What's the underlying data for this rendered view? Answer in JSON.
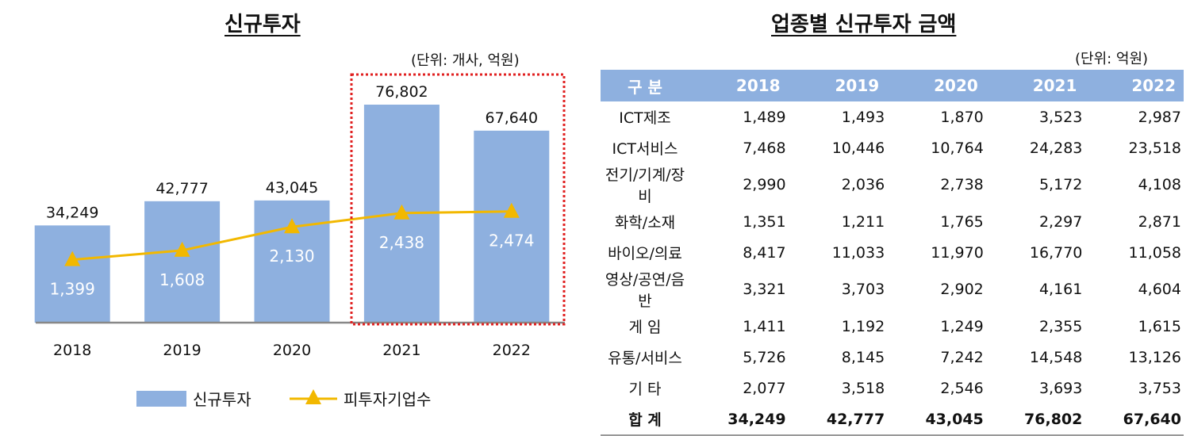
{
  "chart_data": {
    "type": "bar+line",
    "title": "신규투자",
    "unit_note": "(단위: 개사, 억원)",
    "categories": [
      "2018",
      "2019",
      "2020",
      "2021",
      "2022"
    ],
    "series": [
      {
        "name": "신규투자",
        "type": "bar",
        "color": "#8eb0df",
        "values": [
          34249,
          42777,
          43045,
          76802,
          67640
        ],
        "labels": [
          "34,249",
          "42,777",
          "43,045",
          "76,802",
          "67,640"
        ]
      },
      {
        "name": "피투자기업수",
        "type": "line",
        "marker": "triangle",
        "color": "#f2b800",
        "values": [
          1399,
          1608,
          2130,
          2438,
          2474
        ],
        "labels": [
          "1,399",
          "1,608",
          "2,130",
          "2,438",
          "2,474"
        ]
      }
    ],
    "highlight": {
      "categories": [
        "2021",
        "2022"
      ],
      "style": "red dotted box",
      "color": "#e02020"
    },
    "legend_position": "bottom",
    "grid": false
  },
  "table": {
    "title": "업종별 신규투자 금액",
    "unit_note": "(단위: 억원)",
    "header": [
      "구 분",
      "2018",
      "2019",
      "2020",
      "2021",
      "2022"
    ],
    "header_color": "#8eb0df",
    "rows": [
      [
        "ICT제조",
        "1,489",
        "1,493",
        "1,870",
        "3,523",
        "2,987"
      ],
      [
        "ICT서비스",
        "7,468",
        "10,446",
        "10,764",
        "24,283",
        "23,518"
      ],
      [
        "전기/기계/장비",
        "2,990",
        "2,036",
        "2,738",
        "5,172",
        "4,108"
      ],
      [
        "화학/소재",
        "1,351",
        "1,211",
        "1,765",
        "2,297",
        "2,871"
      ],
      [
        "바이오/의료",
        "8,417",
        "11,033",
        "11,970",
        "16,770",
        "11,058"
      ],
      [
        "영상/공연/음반",
        "3,321",
        "3,703",
        "2,902",
        "4,161",
        "4,604"
      ],
      [
        "게 임",
        "1,411",
        "1,192",
        "1,249",
        "2,355",
        "1,615"
      ],
      [
        "유통/서비스",
        "5,726",
        "8,145",
        "7,242",
        "14,548",
        "13,126"
      ],
      [
        "기 타",
        "2,077",
        "3,518",
        "2,546",
        "3,693",
        "3,753"
      ]
    ],
    "total": [
      "합 계",
      "34,249",
      "42,777",
      "43,045",
      "76,802",
      "67,640"
    ]
  }
}
